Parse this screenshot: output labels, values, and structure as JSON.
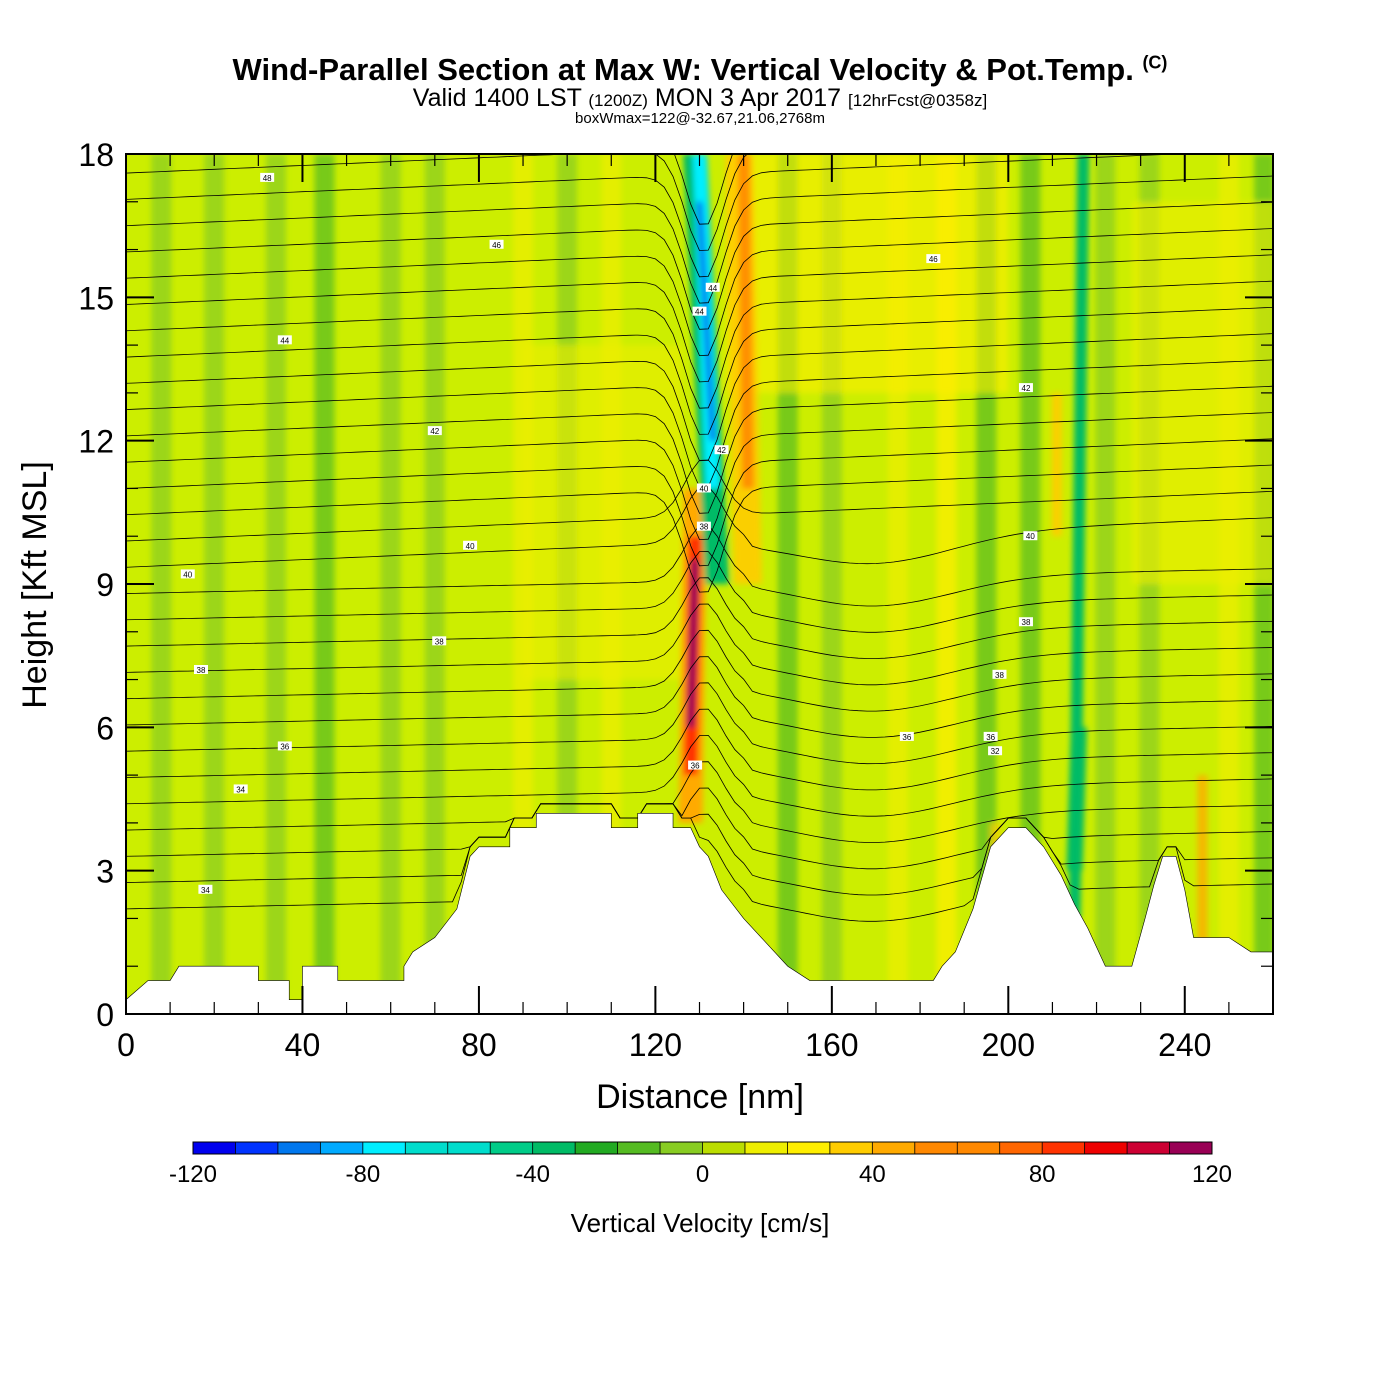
{
  "header": {
    "title_main": "Wind-Parallel Section at Max W: Vertical Velocity & Pot.Temp.",
    "title_mark": "(C)",
    "subtitle_a": "Valid 1400 LST",
    "subtitle_b": "(1200Z)",
    "subtitle_c": "MON 3 Apr 2017",
    "subtitle_d": "[12hrFcst@0358z]",
    "subtitle_line2": "boxWmax=122@-32.67,21.06,2768m"
  },
  "chart_data": {
    "type": "heatmap",
    "xlabel": "Distance [nm]",
    "ylabel": "Height [Kft MSL]",
    "xlim": [
      0,
      260
    ],
    "ylim": [
      0,
      18
    ],
    "x_ticks": [
      0,
      40,
      80,
      120,
      160,
      200,
      240
    ],
    "y_ticks": [
      0,
      3,
      6,
      9,
      12,
      15,
      18
    ],
    "colorbar": {
      "label": "Vertical Velocity [cm/s]",
      "range": [
        -120,
        120
      ],
      "step": 10,
      "ticks": [
        -120,
        -80,
        -40,
        0,
        40,
        80,
        120
      ],
      "colors": [
        "#0000ee",
        "#0033ff",
        "#0077ee",
        "#00aaff",
        "#00eeff",
        "#00ddcc",
        "#00cc88",
        "#00bb66",
        "#22aa22",
        "#55bb22",
        "#88cc22",
        "#bbdd00",
        "#eeee00",
        "#ffee00",
        "#ffcc00",
        "#ffaa00",
        "#ff8800",
        "#ff6600",
        "#ff3300",
        "#ee0000",
        "#cc0033",
        "#990055"
      ]
    },
    "contour_labels": [
      "48",
      "46",
      "46",
      "44",
      "44",
      "44",
      "42",
      "42",
      "42",
      "40",
      "40",
      "40",
      "40",
      "38",
      "38",
      "38",
      "38",
      "38",
      "36",
      "36",
      "36",
      "36",
      "34",
      "34",
      "32"
    ],
    "features": {
      "max_updraft": {
        "x": 128,
        "height": 8,
        "w": 120
      },
      "max_downdraft": {
        "x": 132,
        "height": 14,
        "w": -100
      },
      "terrain_profile": [
        [
          0,
          0.3
        ],
        [
          5,
          0.7
        ],
        [
          10,
          0.7
        ],
        [
          12,
          1
        ],
        [
          30,
          1
        ],
        [
          30,
          0.7
        ],
        [
          37,
          0.7
        ],
        [
          37,
          0.3
        ],
        [
          40,
          0.3
        ],
        [
          40,
          1
        ],
        [
          48,
          1
        ],
        [
          48,
          0.7
        ],
        [
          63,
          0.7
        ],
        [
          63,
          1
        ],
        [
          65,
          1.3
        ],
        [
          70,
          1.6
        ],
        [
          75,
          2.2
        ],
        [
          78,
          3.3
        ],
        [
          80,
          3.5
        ],
        [
          87,
          3.5
        ],
        [
          87,
          3.9
        ],
        [
          93,
          3.9
        ],
        [
          93,
          4.2
        ],
        [
          110,
          4.2
        ],
        [
          110,
          3.9
        ],
        [
          116,
          3.9
        ],
        [
          116,
          4.2
        ],
        [
          124,
          4.2
        ],
        [
          124,
          3.9
        ],
        [
          128,
          3.9
        ],
        [
          130,
          3.5
        ],
        [
          132,
          3.3
        ],
        [
          135,
          2.6
        ],
        [
          140,
          2
        ],
        [
          145,
          1.5
        ],
        [
          150,
          1
        ],
        [
          155,
          0.7
        ],
        [
          162,
          0.7
        ],
        [
          170,
          0.7
        ],
        [
          180,
          0.7
        ],
        [
          183,
          0.7
        ],
        [
          185,
          1
        ],
        [
          188,
          1.3
        ],
        [
          192,
          2.2
        ],
        [
          196,
          3.5
        ],
        [
          200,
          3.9
        ],
        [
          204,
          3.9
        ],
        [
          208,
          3.5
        ],
        [
          212,
          2.9
        ],
        [
          215,
          2.3
        ],
        [
          218,
          1.8
        ],
        [
          222,
          1
        ],
        [
          228,
          1
        ],
        [
          231,
          2
        ],
        [
          233,
          2.7
        ],
        [
          235,
          3.3
        ],
        [
          238,
          3.3
        ],
        [
          240,
          2.6
        ],
        [
          242,
          1.6
        ],
        [
          250,
          1.6
        ],
        [
          255,
          1.3
        ],
        [
          260,
          1.3
        ]
      ],
      "updraft_bands_x": [
        128,
        140,
        215,
        245
      ],
      "downdraft_bands_x": [
        132,
        213,
        85
      ]
    }
  }
}
